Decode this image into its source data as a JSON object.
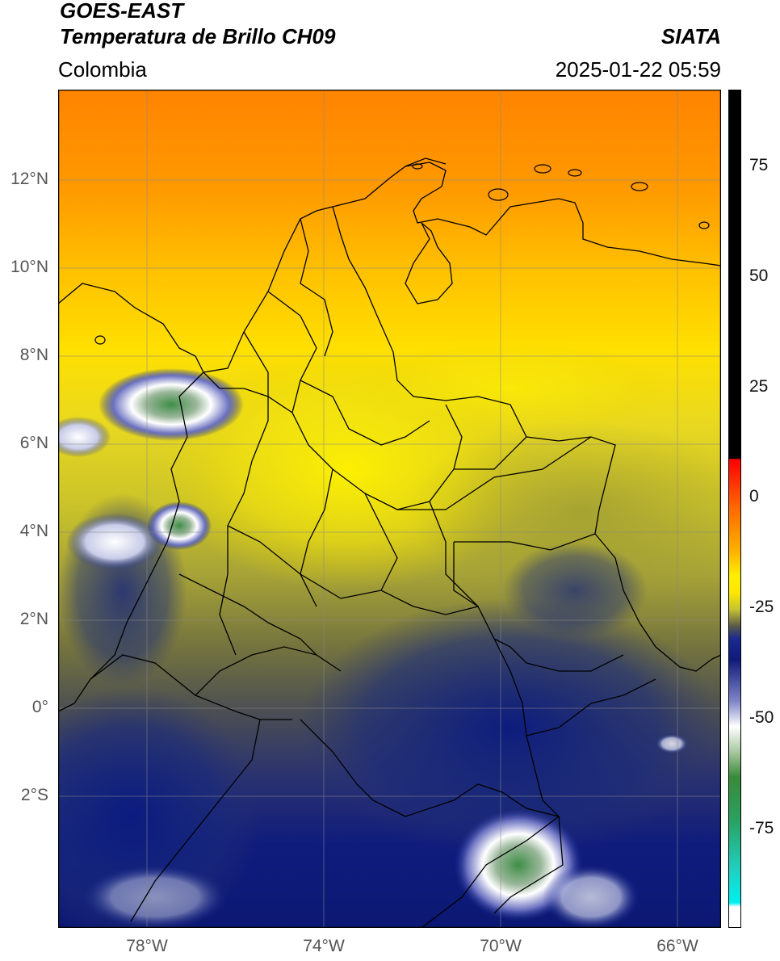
{
  "header": {
    "satellite": "GOES-EAST",
    "product": "Temperatura de Brillo CH09",
    "source": "SIATA",
    "region": "Colombia",
    "datetime": "2025-01-22 05:59"
  },
  "map": {
    "lat_labels": [
      "12°N",
      "10°N",
      "8°N",
      "6°N",
      "4°N",
      "2°N",
      "0°",
      "2°S"
    ],
    "lon_labels": [
      "78°W",
      "74°W",
      "70°W",
      "66°W"
    ],
    "extent": {
      "lon_min": -80,
      "lon_max": -65,
      "lat_min": -5,
      "lat_max": 14
    }
  },
  "colorbar": {
    "ticks": [
      "75",
      "50",
      "25",
      "0",
      "-25",
      "-50",
      "-75"
    ],
    "tick_values": [
      75,
      50,
      25,
      0,
      -25,
      -50,
      -75
    ],
    "range": [
      -95,
      90
    ]
  },
  "colors": {
    "orange": "#ff8c00",
    "yellow": "#ffee00",
    "olive": "#8a8a3a",
    "navy": "#0b1a7a",
    "green": "#3a8a3a",
    "white": "#ffffff"
  }
}
